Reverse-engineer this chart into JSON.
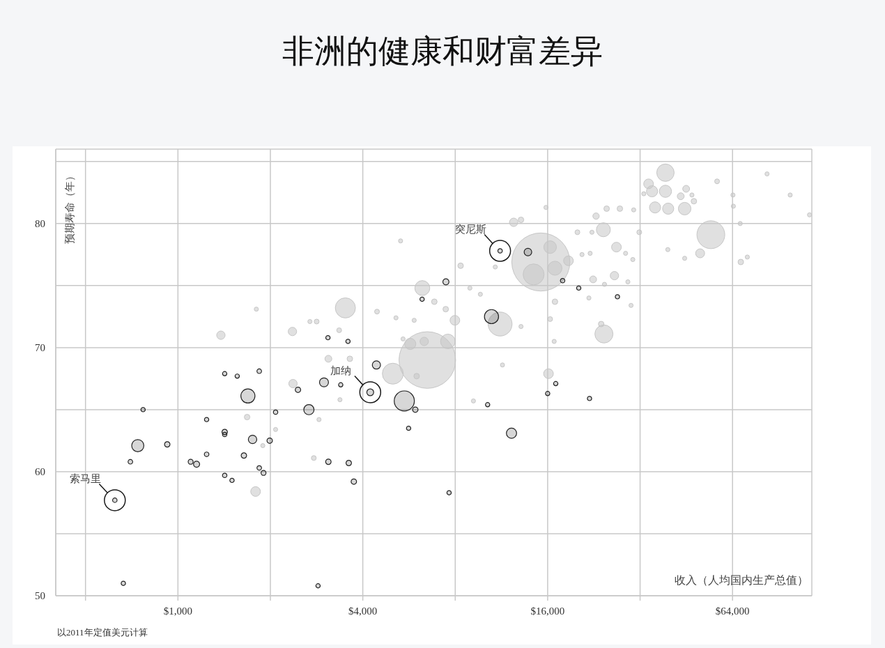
{
  "chart_data": {
    "type": "bubble",
    "title": "非洲的健康和财富差异",
    "xlabel": "收入（人均国内生产总值）",
    "ylabel": "预期寿命（年）",
    "annotations": [
      {
        "text": "索马里",
        "x": 623,
        "y": 57.7
      },
      {
        "text": "加纳",
        "x": 4230,
        "y": 66.4
      },
      {
        "text": "突尼斯",
        "x": 11200,
        "y": 77.8
      },
      "以2011年定值美元计算"
    ],
    "log": "x",
    "xlim": [
      400,
      116000
    ],
    "ylim": [
      50,
      86
    ],
    "xticks": [
      {
        "value": 500,
        "label": null
      },
      {
        "value": 1000,
        "label": "$1,000"
      },
      {
        "value": 2000,
        "label": null
      },
      {
        "value": 4000,
        "label": "$4,000"
      },
      {
        "value": 8000,
        "label": null
      },
      {
        "value": 16000,
        "label": "$16,000"
      },
      {
        "value": 32000,
        "label": null
      },
      {
        "value": 64000,
        "label": "$64,000"
      }
    ],
    "yticks": [
      50,
      {
        "value": 55,
        "label": null
      },
      60,
      {
        "value": 65,
        "label": null
      },
      70,
      {
        "value": 75,
        "label": null
      },
      80,
      {
        "value": 85,
        "label": null
      }
    ],
    "grid": true,
    "marker": "circle",
    "series": [
      {
        "color": "#c6c6c6",
        "x": [
          15200,
          6490,
          54400,
          11200,
          14400,
          5010,
          3510,
          24400,
          38700,
          6250,
          7570,
          16900,
          24300,
          16300,
          44700,
          38700,
          35000,
          35800,
          39500,
          5710,
          34100,
          26800,
          16100,
          18700,
          7980,
          1790,
          50200,
          26400,
          12400,
          6340,
          2360,
          1380,
          2370,
          45200,
          43400,
          22500,
          3090,
          23000,
          47900,
          68100,
          24900,
          27500,
          23900,
          16900,
          13100,
          8330,
          6840,
          7450,
          5990,
          3630,
          1680,
          57000,
          31800,
          20000,
          16300,
          4450,
          3350,
          2830,
          2770,
          47200,
          82900,
          39400,
          20700,
          30300,
          16800,
          8930,
          9660,
          5130,
          5310,
          11400,
          2690,
          114000,
          67800,
          71500,
          64200,
          64400,
          44700,
          32900,
          30500,
          22300,
          22000,
          28700,
          29200,
          24500,
          21800,
          29900,
          13100,
          15800,
          10800,
          5880,
          5410,
          9170,
          1800,
          3370,
          2080,
          2880,
          1890,
          98600
        ],
        "values": [
          76.9,
          69.0,
          79.1,
          71.9,
          75.9,
          67.9,
          73.2,
          71.1,
          84.1,
          74.8,
          70.5,
          76.4,
          79.5,
          78.1,
          81.2,
          82.6,
          82.6,
          81.3,
          81.2,
          70.3,
          83.2,
          78.1,
          67.9,
          77.0,
          72.2,
          58.4,
          77.6,
          75.8,
          80.1,
          70.5,
          71.3,
          71.0,
          67.1,
          82.8,
          82.2,
          75.5,
          69.1,
          80.6,
          81.8,
          76.9,
          81.2,
          81.2,
          71.9,
          73.7,
          80.3,
          76.6,
          73.7,
          73.1,
          67.7,
          69.1,
          64.4,
          83.4,
          79.3,
          79.3,
          72.3,
          72.9,
          71.4,
          72.1,
          61.1,
          82.3,
          84.0,
          77.9,
          77.5,
          77.1,
          70.5,
          74.8,
          74.3,
          72.4,
          78.6,
          68.6,
          72.1,
          80.7,
          80.0,
          77.3,
          82.3,
          81.4,
          77.2,
          82.4,
          81.1,
          79.3,
          77.6,
          77.6,
          75.3,
          75.1,
          74.0,
          73.4,
          71.7,
          81.3,
          76.5,
          72.2,
          70.7,
          65.7,
          73.1,
          65.8,
          63.4,
          64.2,
          62.1,
          82.3
        ],
        "sizes": [
          1,
          0.95,
          0.23,
          0.17,
          0.13,
          0.13,
          0.12,
          0.097,
          0.09,
          0.066,
          0.063,
          0.058,
          0.058,
          0.047,
          0.047,
          0.044,
          0.037,
          0.037,
          0.037,
          0.037,
          0.028,
          0.028,
          0.028,
          0.028,
          0.028,
          0.028,
          0.024,
          0.021,
          0.021,
          0.021,
          0.021,
          0.021,
          0.021,
          0.014,
          0.014,
          0.014,
          0.014,
          0.012,
          0.0092,
          0.0092,
          0.0092,
          0.0092,
          0.0092,
          0.0092,
          0.0092,
          0.0092,
          0.0092,
          0.0092,
          0.0092,
          0.0092,
          0.0092,
          0.007,
          0.007,
          0.007,
          0.007,
          0.007,
          0.007,
          0.007,
          0.007,
          0.0052,
          0.0052,
          0.0052,
          0.0052,
          0.0052,
          0.0052,
          0.0052,
          0.0052,
          0.0052,
          0.0052,
          0.0052,
          0.0052,
          0.0052,
          0.0052,
          0.0052,
          0.0052,
          0.0052,
          0.0052,
          0.0052,
          0.0052,
          0.0052,
          0.0052,
          0.0052,
          0.0052,
          0.0052,
          0.0052,
          0.0052,
          0.0052,
          0.0052,
          0.0052,
          0.0052,
          0.0052,
          0.0052,
          0.0052,
          0.0052,
          0.0052,
          0.0052,
          0.0052,
          0.0052
        ]
      },
      {
        "color": "#222222",
        "x": [
          623,
          664,
          700,
          740,
          770,
          923,
          1100,
          1150,
          1240,
          1240,
          1420,
          1420,
          1420,
          1420,
          1500,
          1560,
          1640,
          1690,
          1750,
          1840,
          1840,
          1900,
          1990,
          2080,
          2460,
          2670,
          2860,
          2990,
          3080,
          3090,
          3390,
          3580,
          3600,
          3740,
          4230,
          4430,
          5460,
          5640,
          5930,
          6240,
          7460,
          7640,
          10200,
          10500,
          11200,
          12200,
          13800,
          16000,
          17000,
          17900,
          20200,
          21900,
          27000
        ],
        "values": [
          57.7,
          51.0,
          60.8,
          62.1,
          65.0,
          62.2,
          60.8,
          60.6,
          61.4,
          64.2,
          67.9,
          63.2,
          63.0,
          59.7,
          59.3,
          67.7,
          61.3,
          66.1,
          62.6,
          68.1,
          60.3,
          59.9,
          62.5,
          64.8,
          66.6,
          65.0,
          50.8,
          67.2,
          70.8,
          60.8,
          67.0,
          70.5,
          60.7,
          59.2,
          66.4,
          68.6,
          65.7,
          63.5,
          65.0,
          73.9,
          75.3,
          58.3,
          65.4,
          72.5,
          77.8,
          63.1,
          77.7,
          66.3,
          67.1,
          75.4,
          74.8,
          65.9,
          74.1
        ],
        "sizes": [
          0.0058,
          0.0055,
          0.0062,
          0.044,
          0.0055,
          0.0087,
          0.0072,
          0.011,
          0.0062,
          0.0055,
          0.0055,
          0.0087,
          0.0058,
          0.0058,
          0.0055,
          0.0055,
          0.0087,
          0.059,
          0.021,
          0.0062,
          0.0062,
          0.0072,
          0.0087,
          0.0058,
          0.0087,
          0.031,
          0.0055,
          0.024,
          0.0055,
          0.0087,
          0.0055,
          0.0055,
          0.0087,
          0.0087,
          0.014,
          0.02,
          0.12,
          0.0055,
          0.0087,
          0.0055,
          0.011,
          0.0055,
          0.0055,
          0.059,
          0.0058,
          0.031,
          0.017,
          0.0055,
          0.0055,
          0.0058,
          0.0055,
          0.0055,
          0.0055
        ]
      }
    ]
  }
}
